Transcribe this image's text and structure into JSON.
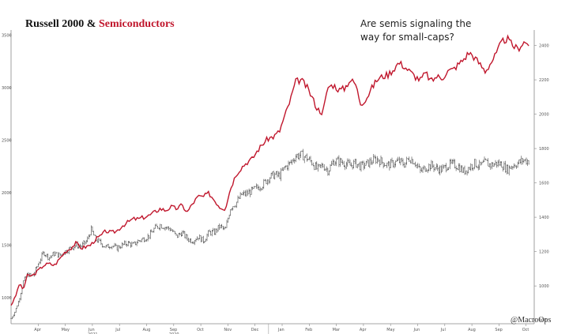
{
  "title": {
    "main": "Russell 2000 & ",
    "accent": "Semiconductors",
    "accent_color": "#c0162c"
  },
  "annotation": {
    "line1": "Are semis signaling the",
    "line2": "way for small-caps?"
  },
  "credit": "@MacroOps",
  "colors": {
    "russell": "#333333",
    "semis": "#c0162c",
    "axis": "#888888"
  },
  "chart_data": {
    "type": "line",
    "x_ticks": [
      "Apr",
      "May",
      "Jun",
      "Jul",
      "Aug",
      "Sep",
      "Oct",
      "Nov",
      "Dec",
      "Jan",
      "Feb",
      "Mar",
      "Apr",
      "May",
      "Jun",
      "Jul",
      "Aug",
      "Sep",
      "Oct"
    ],
    "year_labels": [
      {
        "label": "2020",
        "at": "Sep"
      },
      {
        "label": "2021",
        "at": "Jun"
      }
    ],
    "y_left": {
      "ticks": [
        1000,
        1500,
        2000,
        2500,
        3000,
        3500
      ],
      "lim": [
        750,
        3550
      ]
    },
    "y_right": {
      "ticks": [
        800,
        1000,
        1200,
        1400,
        1600,
        1800,
        2000,
        2200,
        2400
      ],
      "lim": [
        780,
        2490
      ]
    },
    "x_lim": [
      0,
      19.3
    ],
    "series": [
      {
        "name": "Russell 2000",
        "axis": "left",
        "style": "ohlc",
        "points": [
          [
            0.0,
            800
          ],
          [
            0.15,
            870
          ],
          [
            0.3,
            980
          ],
          [
            0.45,
            1150
          ],
          [
            0.6,
            1220
          ],
          [
            0.8,
            1200
          ],
          [
            1.0,
            1320
          ],
          [
            1.2,
            1430
          ],
          [
            1.4,
            1380
          ],
          [
            1.6,
            1420
          ],
          [
            1.8,
            1400
          ],
          [
            2.0,
            1440
          ],
          [
            2.2,
            1470
          ],
          [
            2.4,
            1500
          ],
          [
            2.6,
            1490
          ],
          [
            2.8,
            1540
          ],
          [
            2.95,
            1650
          ],
          [
            3.1,
            1560
          ],
          [
            3.3,
            1520
          ],
          [
            3.5,
            1480
          ],
          [
            3.7,
            1500
          ],
          [
            3.9,
            1470
          ],
          [
            4.1,
            1500
          ],
          [
            4.3,
            1520
          ],
          [
            4.5,
            1500
          ],
          [
            4.7,
            1540
          ],
          [
            4.9,
            1560
          ],
          [
            5.1,
            1590
          ],
          [
            5.3,
            1660
          ],
          [
            5.5,
            1690
          ],
          [
            5.7,
            1670
          ],
          [
            5.9,
            1650
          ],
          [
            6.1,
            1580
          ],
          [
            6.3,
            1620
          ],
          [
            6.5,
            1560
          ],
          [
            6.7,
            1540
          ],
          [
            6.9,
            1580
          ],
          [
            7.1,
            1540
          ],
          [
            7.3,
            1620
          ],
          [
            7.5,
            1620
          ],
          [
            7.7,
            1680
          ],
          [
            7.9,
            1640
          ],
          [
            8.1,
            1860
          ],
          [
            8.3,
            1900
          ],
          [
            8.5,
            1980
          ],
          [
            8.7,
            1990
          ],
          [
            8.9,
            2020
          ],
          [
            9.1,
            2050
          ],
          [
            9.3,
            2080
          ],
          [
            9.5,
            2140
          ],
          [
            9.7,
            2170
          ],
          [
            9.9,
            2160
          ],
          [
            10.1,
            2240
          ],
          [
            10.3,
            2280
          ],
          [
            10.5,
            2350
          ],
          [
            10.7,
            2360
          ],
          [
            10.9,
            2330
          ],
          [
            11.1,
            2290
          ],
          [
            11.3,
            2220
          ],
          [
            11.5,
            2260
          ],
          [
            11.7,
            2210
          ],
          [
            11.9,
            2300
          ],
          [
            12.1,
            2300
          ],
          [
            12.3,
            2280
          ],
          [
            12.5,
            2260
          ],
          [
            12.7,
            2280
          ],
          [
            12.9,
            2250
          ],
          [
            13.1,
            2270
          ],
          [
            13.3,
            2300
          ],
          [
            13.5,
            2320
          ],
          [
            13.7,
            2290
          ],
          [
            13.9,
            2260
          ],
          [
            14.1,
            2280
          ],
          [
            14.3,
            2300
          ],
          [
            14.5,
            2270
          ],
          [
            14.7,
            2330
          ],
          [
            14.9,
            2290
          ],
          [
            15.1,
            2200
          ],
          [
            15.3,
            2240
          ],
          [
            15.5,
            2260
          ],
          [
            15.7,
            2230
          ],
          [
            15.9,
            2220
          ],
          [
            16.1,
            2260
          ],
          [
            16.3,
            2270
          ],
          [
            16.5,
            2250
          ],
          [
            16.7,
            2200
          ],
          [
            16.9,
            2240
          ],
          [
            17.1,
            2280
          ],
          [
            17.3,
            2250
          ],
          [
            17.5,
            2290
          ],
          [
            17.7,
            2260
          ],
          [
            17.9,
            2280
          ],
          [
            18.1,
            2270
          ],
          [
            18.3,
            2220
          ],
          [
            18.5,
            2260
          ],
          [
            18.7,
            2280
          ],
          [
            18.9,
            2310
          ],
          [
            19.1,
            2300
          ]
        ]
      },
      {
        "name": "Semiconductors",
        "axis": "right",
        "style": "line",
        "points": [
          [
            0.0,
            890
          ],
          [
            0.15,
            930
          ],
          [
            0.3,
            1010
          ],
          [
            0.45,
            980
          ],
          [
            0.6,
            1060
          ],
          [
            0.8,
            1060
          ],
          [
            1.0,
            1090
          ],
          [
            1.2,
            1120
          ],
          [
            1.4,
            1130
          ],
          [
            1.6,
            1120
          ],
          [
            1.8,
            1160
          ],
          [
            2.0,
            1200
          ],
          [
            2.2,
            1220
          ],
          [
            2.4,
            1250
          ],
          [
            2.6,
            1220
          ],
          [
            2.8,
            1230
          ],
          [
            2.95,
            1240
          ],
          [
            3.1,
            1270
          ],
          [
            3.3,
            1290
          ],
          [
            3.5,
            1320
          ],
          [
            3.7,
            1310
          ],
          [
            3.9,
            1320
          ],
          [
            4.1,
            1350
          ],
          [
            4.3,
            1370
          ],
          [
            4.5,
            1390
          ],
          [
            4.7,
            1390
          ],
          [
            4.9,
            1400
          ],
          [
            5.1,
            1410
          ],
          [
            5.3,
            1430
          ],
          [
            5.5,
            1450
          ],
          [
            5.7,
            1440
          ],
          [
            5.9,
            1460
          ],
          [
            6.1,
            1450
          ],
          [
            6.3,
            1470
          ],
          [
            6.5,
            1430
          ],
          [
            6.7,
            1480
          ],
          [
            6.9,
            1520
          ],
          [
            7.1,
            1520
          ],
          [
            7.3,
            1540
          ],
          [
            7.5,
            1500
          ],
          [
            7.7,
            1460
          ],
          [
            7.9,
            1450
          ],
          [
            8.1,
            1570
          ],
          [
            8.3,
            1650
          ],
          [
            8.5,
            1690
          ],
          [
            8.7,
            1720
          ],
          [
            8.9,
            1740
          ],
          [
            9.1,
            1790
          ],
          [
            9.3,
            1830
          ],
          [
            9.5,
            1860
          ],
          [
            9.7,
            1870
          ],
          [
            9.9,
            1900
          ],
          [
            10.1,
            1990
          ],
          [
            10.3,
            2080
          ],
          [
            10.5,
            2190
          ],
          [
            10.7,
            2200
          ],
          [
            10.9,
            2160
          ],
          [
            11.1,
            2100
          ],
          [
            11.3,
            2030
          ],
          [
            11.5,
            2010
          ],
          [
            11.7,
            2160
          ],
          [
            11.9,
            2170
          ],
          [
            12.1,
            2140
          ],
          [
            12.3,
            2150
          ],
          [
            12.5,
            2200
          ],
          [
            12.7,
            2180
          ],
          [
            12.9,
            2060
          ],
          [
            13.1,
            2090
          ],
          [
            13.3,
            2150
          ],
          [
            13.5,
            2200
          ],
          [
            13.7,
            2220
          ],
          [
            13.9,
            2230
          ],
          [
            14.1,
            2260
          ],
          [
            14.3,
            2300
          ],
          [
            14.5,
            2280
          ],
          [
            14.7,
            2250
          ],
          [
            14.9,
            2220
          ],
          [
            15.1,
            2200
          ],
          [
            15.3,
            2240
          ],
          [
            15.5,
            2190
          ],
          [
            15.7,
            2220
          ],
          [
            15.9,
            2210
          ],
          [
            16.1,
            2250
          ],
          [
            16.3,
            2260
          ],
          [
            16.5,
            2290
          ],
          [
            16.7,
            2320
          ],
          [
            16.9,
            2360
          ],
          [
            17.1,
            2330
          ],
          [
            17.3,
            2290
          ],
          [
            17.5,
            2250
          ],
          [
            17.7,
            2300
          ],
          [
            17.9,
            2350
          ],
          [
            18.1,
            2420
          ],
          [
            18.3,
            2440
          ],
          [
            18.5,
            2400
          ],
          [
            18.7,
            2380
          ],
          [
            18.9,
            2420
          ],
          [
            19.1,
            2410
          ]
        ]
      }
    ]
  }
}
